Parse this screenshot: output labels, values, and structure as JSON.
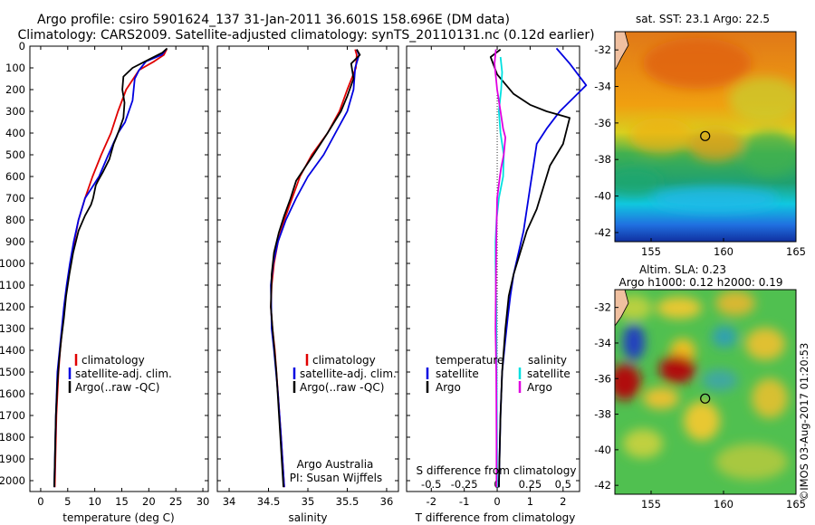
{
  "title_line1": "Argo profile: csiro 5901624_137 31-Jan-2011 36.601S 158.696E (DM data)",
  "title_line2": "Climatology: CARS2009. Satellite-adjusted climatology: synTS_20110131.nc (0.12d earlier)",
  "colors": {
    "climatology": "#e00000",
    "satellite": "#0000e0",
    "argo": "#000000",
    "salinity_satellite": "#00e0e0",
    "salinity_argo": "#e000e0"
  },
  "depth_axis": {
    "ylim": [
      0,
      2050
    ],
    "ticks": [
      "0",
      "100",
      "200",
      "300",
      "400",
      "500",
      "600",
      "700",
      "800",
      "900",
      "1000",
      "1100",
      "1200",
      "1300",
      "1400",
      "1500",
      "1600",
      "1700",
      "1800",
      "1900",
      "2000"
    ]
  },
  "temperature_panel": {
    "xlabel": "temperature (deg C)",
    "xlim": [
      -2,
      31
    ],
    "xticks": [
      "0",
      "5",
      "10",
      "15",
      "20",
      "25",
      "30"
    ],
    "legend": [
      "climatology",
      "satellite-adj. clim.",
      "Argo(..raw -QC)"
    ]
  },
  "salinity_panel": {
    "xlabel": "salinity",
    "xlim": [
      33.85,
      36.15
    ],
    "xticks": [
      "34",
      "34.5",
      "35",
      "35.5",
      "36"
    ],
    "legend": [
      "climatology",
      "satellite-adj. clim.",
      "Argo(..raw -QC)"
    ],
    "note_line1": "Argo Australia",
    "note_line2": "PI: Susan Wijffels"
  },
  "difference_panel": {
    "xlabel": "T difference from climatology",
    "toplabel": "S difference from climatology",
    "xlim": [
      -2.75,
      2.5
    ],
    "xticks_T": [
      "-2",
      "-1",
      "0",
      "1",
      "2"
    ],
    "xticks_S": [
      "-0.5",
      "-0.25",
      "0",
      "0.25",
      "0.5"
    ],
    "legend_temp_title": "temperature",
    "legend_temp": [
      "satellite",
      "Argo"
    ],
    "legend_sal_title": "salinity",
    "legend_sal": [
      "satellite",
      "Argo"
    ]
  },
  "sst_map": {
    "title": "sat. SST: 23.1  Argo: 22.5",
    "xticks": [
      "155",
      "160",
      "165"
    ],
    "yticks": [
      "-32",
      "-34",
      "-36",
      "-38",
      "-40",
      "-42"
    ]
  },
  "sla_map": {
    "title_line1": "Altim. SLA: 0.23",
    "title_line2": "Argo h1000: 0.12 h2000: 0.19",
    "xticks": [
      "155",
      "160",
      "165"
    ],
    "yticks": [
      "-32",
      "-34",
      "-36",
      "-38",
      "-40",
      "-42"
    ]
  },
  "float_position": {
    "lon": 158.696,
    "lat": -36.601
  },
  "credit": "©IMOS 03-Aug-2017 01:20:53",
  "chart_data": [
    {
      "type": "line",
      "xlabel": "temperature (deg C)",
      "ylabel": "",
      "xlim": [
        -2,
        31
      ],
      "ylim": [
        2050,
        0
      ],
      "series": [
        {
          "name": "climatology",
          "color": "#e00000",
          "x": [
            23.3,
            22.8,
            21.0,
            18.2,
            15.8,
            14.3,
            13.0,
            11.2,
            9.6,
            8.2,
            7.0,
            6.2,
            5.5,
            4.9,
            4.4,
            4.0,
            3.6,
            3.3,
            2.9,
            2.6
          ],
          "y": [
            15,
            40,
            70,
            110,
            200,
            300,
            400,
            500,
            600,
            700,
            800,
            900,
            1000,
            1100,
            1200,
            1300,
            1400,
            1500,
            1700,
            2030
          ]
        },
        {
          "name": "satellite-adj. clim.",
          "color": "#0000e0",
          "x": [
            23.2,
            22.4,
            19.5,
            18.2,
            17.4,
            17.0,
            15.6,
            14.3,
            12.5,
            10.8,
            9.5,
            8.2,
            7.0,
            6.1,
            5.4,
            4.8,
            4.3,
            3.9,
            3.5,
            3.1,
            2.8,
            2.5
          ],
          "y": [
            15,
            40,
            70,
            110,
            150,
            250,
            350,
            400,
            500,
            600,
            650,
            700,
            800,
            900,
            1000,
            1100,
            1200,
            1300,
            1400,
            1500,
            1700,
            2030
          ]
        },
        {
          "name": "Argo(..raw -QC)",
          "color": "#000000",
          "x": [
            23.4,
            22.5,
            20.1,
            17.0,
            15.3,
            15.1,
            15.5,
            15.3,
            14.6,
            14.0,
            13.5,
            12.7,
            11.5,
            10.6,
            10.2,
            9.7,
            9.3,
            8.2,
            7.0,
            6.0,
            5.3,
            4.7,
            4.3,
            3.8,
            3.4,
            3.1,
            2.8,
            2.5
          ],
          "y": [
            10,
            30,
            60,
            100,
            140,
            200,
            260,
            330,
            380,
            420,
            450,
            520,
            580,
            620,
            640,
            700,
            730,
            780,
            850,
            950,
            1050,
            1150,
            1250,
            1350,
            1450,
            1550,
            1700,
            2030
          ]
        }
      ]
    },
    {
      "type": "line",
      "xlabel": "salinity",
      "ylabel": "",
      "xlim": [
        33.85,
        36.15
      ],
      "ylim": [
        2050,
        0
      ],
      "series": [
        {
          "name": "climatology",
          "color": "#e00000",
          "x": [
            35.6,
            35.62,
            35.61,
            35.5,
            35.4,
            35.25,
            35.05,
            34.9,
            34.8,
            34.7,
            34.62,
            34.57,
            34.54,
            34.53,
            34.55,
            34.58,
            34.62,
            34.66,
            34.7
          ],
          "y": [
            15,
            40,
            100,
            200,
            300,
            400,
            500,
            600,
            700,
            800,
            900,
            1000,
            1100,
            1200,
            1300,
            1400,
            1600,
            1800,
            2030
          ]
        },
        {
          "name": "satellite-adj. clim.",
          "color": "#0000e0",
          "x": [
            35.62,
            35.65,
            35.6,
            35.58,
            35.5,
            35.35,
            35.2,
            35.0,
            34.85,
            34.72,
            34.62,
            34.56,
            34.53,
            34.54,
            34.57,
            34.62,
            34.66,
            34.7
          ],
          "y": [
            15,
            40,
            100,
            200,
            300,
            400,
            500,
            600,
            700,
            800,
            900,
            1000,
            1100,
            1300,
            1400,
            1600,
            1800,
            2030
          ]
        },
        {
          "name": "Argo(..raw -QC)",
          "color": "#000000",
          "x": [
            35.62,
            35.66,
            35.55,
            35.58,
            35.5,
            35.42,
            35.25,
            35.07,
            34.96,
            34.85,
            34.78,
            34.7,
            34.63,
            34.57,
            34.54,
            34.53,
            34.55,
            34.6,
            34.65,
            34.69
          ],
          "y": [
            15,
            40,
            80,
            150,
            230,
            300,
            400,
            500,
            560,
            620,
            700,
            780,
            860,
            950,
            1050,
            1200,
            1300,
            1500,
            1800,
            2030
          ]
        }
      ]
    },
    {
      "type": "line",
      "xlabel": "T difference from climatology",
      "xlabel_top": "S difference from climatology",
      "ylabel": "",
      "xlim": [
        -2.75,
        2.5
      ],
      "ylim": [
        2050,
        0
      ],
      "series": [
        {
          "name": "temperature satellite",
          "color": "#0000e0",
          "x": [
            1.8,
            2.2,
            2.7,
            1.9,
            1.5,
            1.2,
            1.1,
            1.0,
            0.9,
            0.8,
            0.65,
            0.5,
            0.4,
            0.32,
            0.25,
            0.15,
            0.1,
            0.05
          ],
          "y": [
            10,
            80,
            180,
            300,
            380,
            450,
            550,
            650,
            750,
            850,
            950,
            1050,
            1150,
            1250,
            1350,
            1500,
            1700,
            2030
          ]
        },
        {
          "name": "temperature Argo",
          "color": "#000000",
          "x": [
            0.1,
            -0.2,
            0.0,
            0.5,
            1.0,
            1.5,
            2.2,
            2.0,
            1.6,
            1.4,
            1.2,
            0.9,
            0.7,
            0.5,
            0.35,
            0.25,
            0.15,
            0.1,
            0.05
          ],
          "y": [
            15,
            50,
            130,
            220,
            270,
            300,
            330,
            450,
            550,
            650,
            750,
            850,
            950,
            1050,
            1150,
            1300,
            1500,
            1700,
            2030
          ]
        },
        {
          "name": "salinity satellite",
          "color": "#00e0e0",
          "x": [
            0.1,
            0.15,
            0.12,
            0.05,
            0.1,
            0.2,
            0.18,
            0.05,
            -0.02,
            -0.05,
            -0.05,
            -0.03,
            -0.02,
            -0.01,
            0.0
          ],
          "y": [
            50,
            120,
            200,
            300,
            400,
            500,
            600,
            700,
            800,
            900,
            1000,
            1200,
            1400,
            1700,
            2030
          ]
        },
        {
          "name": "salinity Argo",
          "color": "#e000e0",
          "x": [
            -0.04,
            -0.08,
            0.0,
            0.1,
            0.18,
            0.25,
            0.2,
            0.12,
            0.08,
            0.0,
            -0.03,
            -0.04,
            -0.05,
            -0.03,
            -0.02,
            -0.02
          ],
          "y": [
            15,
            80,
            200,
            300,
            380,
            420,
            500,
            560,
            600,
            700,
            900,
            1100,
            1300,
            1500,
            1800,
            2030
          ]
        }
      ]
    }
  ]
}
